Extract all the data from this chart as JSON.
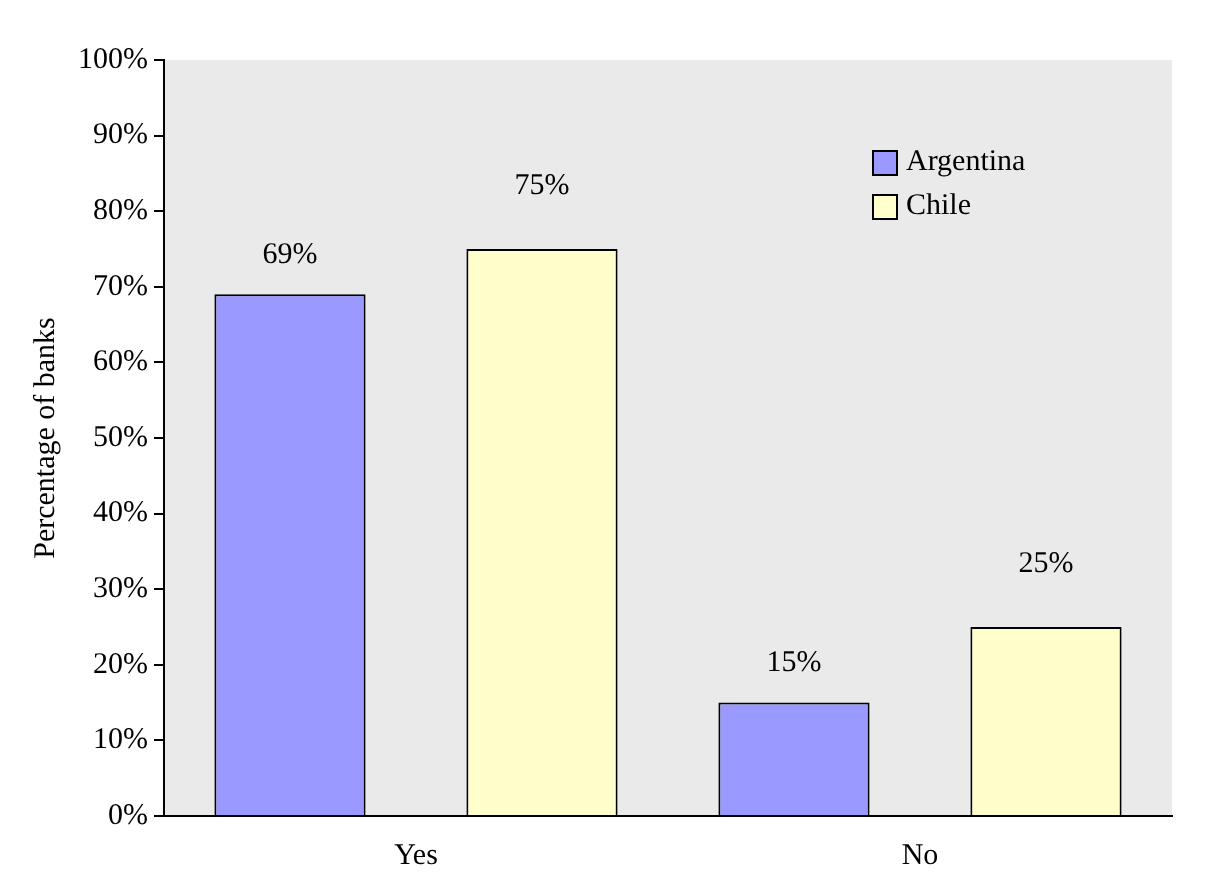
{
  "chart_data": {
    "type": "bar",
    "ylabel": "Percentage of banks",
    "categories": [
      "Yes",
      "No"
    ],
    "series": [
      {
        "name": "Argentina",
        "color": "#9999ff",
        "values": [
          69,
          15
        ],
        "value_labels": [
          "69%",
          "15%"
        ]
      },
      {
        "name": "Chile",
        "color": "#ffffcc",
        "values": [
          75,
          25
        ],
        "value_labels": [
          "75%",
          "25%"
        ]
      }
    ],
    "ylim": [
      0,
      100
    ],
    "yticks": [
      {
        "value": 0,
        "label": "0%"
      },
      {
        "value": 10,
        "label": "10%"
      },
      {
        "value": 20,
        "label": "20%"
      },
      {
        "value": 30,
        "label": "30%"
      },
      {
        "value": 40,
        "label": "40%"
      },
      {
        "value": 50,
        "label": "50%"
      },
      {
        "value": 60,
        "label": "60%"
      },
      {
        "value": 70,
        "label": "70%"
      },
      {
        "value": 80,
        "label": "80%"
      },
      {
        "value": 90,
        "label": "90%"
      },
      {
        "value": 100,
        "label": "100%"
      }
    ],
    "grid": false,
    "legend": "top right"
  }
}
